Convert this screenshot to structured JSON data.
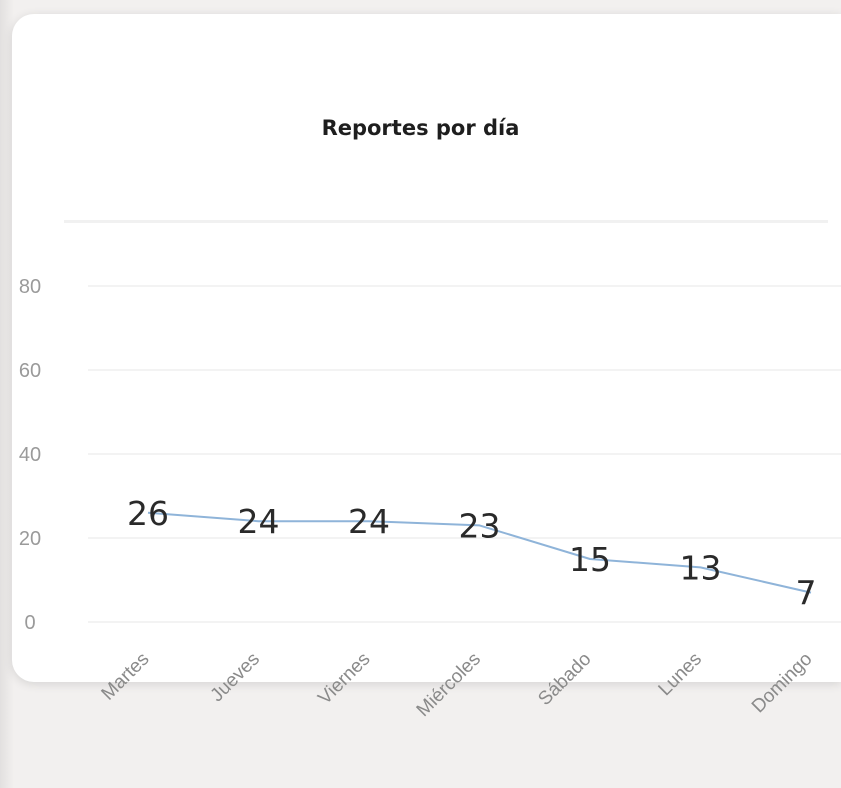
{
  "colors": {
    "line": "#8fb4d9",
    "grid": "#efefef",
    "card": "#ffffff",
    "background": "#f2f0ef"
  },
  "chart_data": {
    "type": "line",
    "title": "Reportes por día",
    "categories": [
      "Martes",
      "Jueves",
      "Viernes",
      "Miércoles",
      "Sábado",
      "Lunes",
      "Domingo"
    ],
    "values": [
      26,
      24,
      24,
      23,
      15,
      13,
      7
    ],
    "yticks": [
      0,
      20,
      40,
      60,
      80
    ],
    "ylim": [
      0,
      80
    ],
    "grid": true,
    "data_labels": true
  }
}
